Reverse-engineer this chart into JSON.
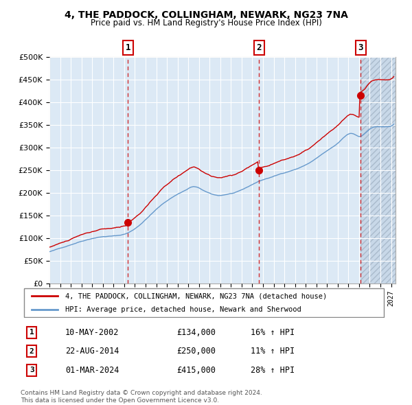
{
  "title": "4, THE PADDOCK, COLLINGHAM, NEWARK, NG23 7NA",
  "subtitle": "Price paid vs. HM Land Registry's House Price Index (HPI)",
  "ylabel_color": "#333333",
  "plot_bg": "#dce9f5",
  "hatch_bg": "#c8d8e8",
  "grid_color": "#ffffff",
  "red_line_color": "#cc0000",
  "blue_line_color": "#6699cc",
  "sale_marker_color": "#cc0000",
  "dashed_line_color": "#cc0000",
  "sale1_date_idx": 90,
  "sale1_price": 134000,
  "sale2_date_idx": 235,
  "sale2_price": 250000,
  "sale3_date_idx": 349,
  "sale3_price": 415000,
  "x_start_year": 1995,
  "x_end_year": 2027,
  "ylim": [
    0,
    500000
  ],
  "yticks": [
    0,
    50000,
    100000,
    150000,
    200000,
    250000,
    300000,
    350000,
    400000,
    450000,
    500000
  ],
  "legend1": "4, THE PADDOCK, COLLINGHAM, NEWARK, NG23 7NA (detached house)",
  "legend2": "HPI: Average price, detached house, Newark and Sherwood",
  "sale_rows": [
    {
      "num": "1",
      "date": "10-MAY-2002",
      "price": "£134,000",
      "pct": "16% ↑ HPI"
    },
    {
      "num": "2",
      "date": "22-AUG-2014",
      "price": "£250,000",
      "pct": "11% ↑ HPI"
    },
    {
      "num": "3",
      "date": "01-MAR-2024",
      "price": "£415,000",
      "pct": "28% ↑ HPI"
    }
  ],
  "footnote1": "Contains HM Land Registry data © Crown copyright and database right 2024.",
  "footnote2": "This data is licensed under the Open Government Licence v3.0."
}
